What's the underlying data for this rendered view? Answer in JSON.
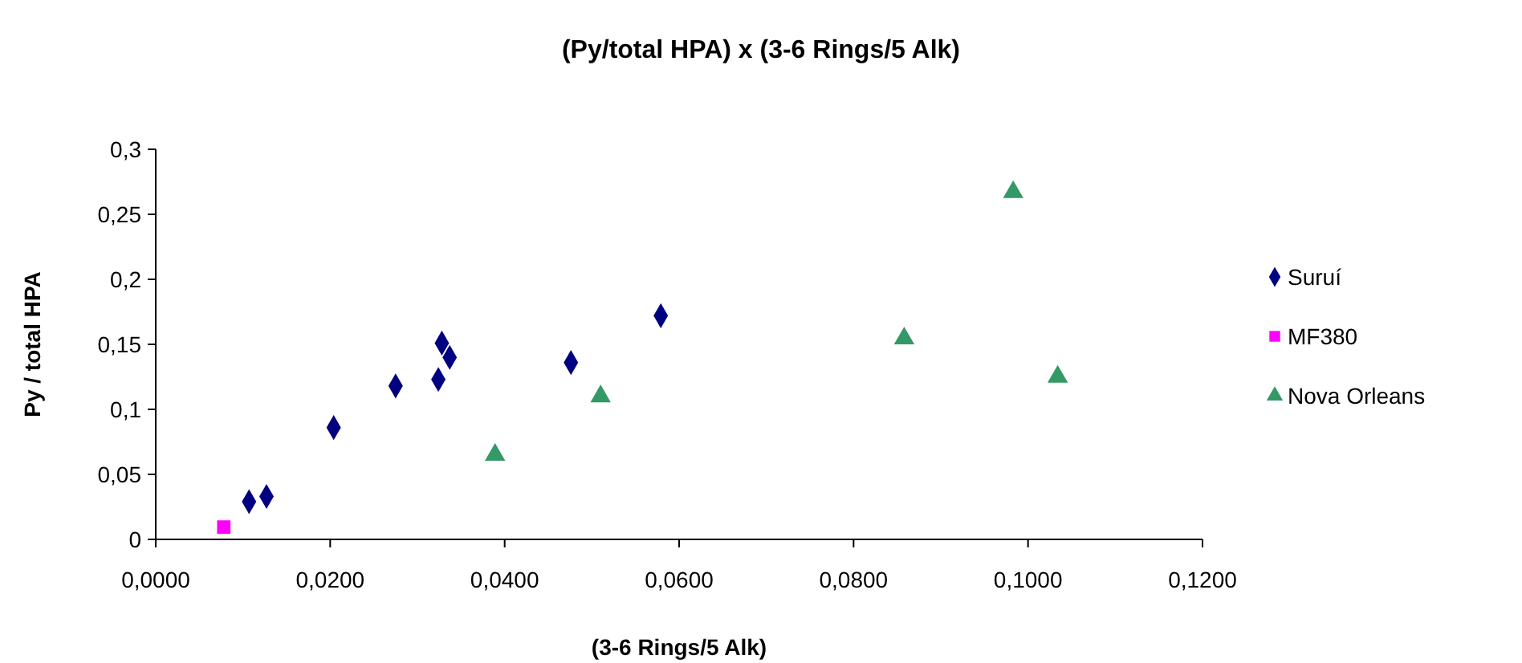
{
  "chart_data": {
    "type": "scatter",
    "title": "(Py/total HPA) x (3-6 Rings/5 Alk)",
    "xlabel": "(3-6 Rings/5 Alk)",
    "ylabel": "Py / total HPA",
    "xlim": [
      0,
      0.12
    ],
    "xticks": [
      {
        "value": 0,
        "label": "0,0000"
      },
      {
        "value": 0.02,
        "label": "0,0200"
      },
      {
        "value": 0.04,
        "label": "0,0400"
      },
      {
        "value": 0.06,
        "label": "0,0600"
      },
      {
        "value": 0.08,
        "label": "0,0800"
      },
      {
        "value": 0.1,
        "label": "0,1000"
      },
      {
        "value": 0.12,
        "label": "0,1200"
      }
    ],
    "ylim": [
      0,
      0.3
    ],
    "yticks": [
      0,
      {
        "value": 0.05,
        "label": "0,05"
      },
      {
        "value": 0.1,
        "label": "0,1"
      },
      {
        "value": 0.15,
        "label": "0,15"
      },
      {
        "value": 0.2,
        "label": "0,2"
      },
      {
        "value": 0.25,
        "label": "0,25"
      },
      {
        "value": 0.3,
        "label": "0,3"
      }
    ],
    "grid": false,
    "legend": "right",
    "series": [
      {
        "name": "Suruí",
        "color": "#000080",
        "marker": "diamond",
        "x": [
          0.0107,
          0.0127,
          0.0204,
          0.0275,
          0.0324,
          0.0328,
          0.0337,
          0.0476,
          0.0579
        ],
        "values": [
          0.029,
          0.033,
          0.086,
          0.118,
          0.123,
          0.151,
          0.14,
          0.136,
          0.172
        ]
      },
      {
        "name": "MF380",
        "color": "#ff00ff",
        "marker": "square",
        "x": [
          0.0078
        ],
        "values": [
          0.0095
        ]
      },
      {
        "name": "Nova Orleans",
        "color": "#339966",
        "marker": "triangle",
        "x": [
          0.0389,
          0.051,
          0.0858,
          0.0983,
          0.1034
        ],
        "values": [
          0.065,
          0.11,
          0.1545,
          0.267,
          0.125
        ]
      }
    ]
  }
}
